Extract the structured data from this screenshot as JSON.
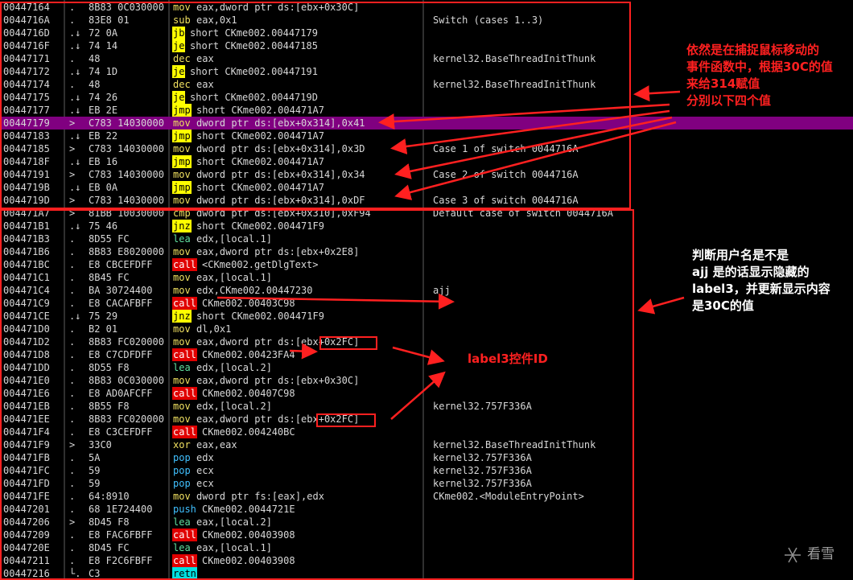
{
  "rows": [
    {
      "address": "00447164",
      "marker": ".",
      "bytes": "8B83 0C030000",
      "mnemonic": "mov",
      "operands": "eax,dword ptr ds:[ebx+0x30C]",
      "style": "plain"
    },
    {
      "address": "0044716A",
      "marker": ".",
      "bytes": "83E8 01",
      "mnemonic": "sub",
      "operands": "eax,0x1",
      "comment": "Switch (cases 1..3)",
      "style": "plain"
    },
    {
      "address": "0044716D",
      "marker": ".↓",
      "bytes": "72 0A",
      "mnemonic": "jb",
      "operands": "short CKme002.00447179",
      "style": "branch"
    },
    {
      "address": "0044716F",
      "marker": ".↓",
      "bytes": "74 14",
      "mnemonic": "je",
      "operands": "short CKme002.00447185",
      "style": "branch"
    },
    {
      "address": "00447171",
      "marker": ".",
      "bytes": "48",
      "mnemonic": "dec",
      "operands": "eax",
      "comment": "kernel32.BaseThreadInitThunk",
      "style": "plain"
    },
    {
      "address": "00447172",
      "marker": ".↓",
      "bytes": "74 1D",
      "mnemonic": "je",
      "operands": "short CKme002.00447191",
      "style": "branch"
    },
    {
      "address": "00447174",
      "marker": ".",
      "bytes": "48",
      "mnemonic": "dec",
      "operands": "eax",
      "comment": "kernel32.BaseThreadInitThunk",
      "style": "plain"
    },
    {
      "address": "00447175",
      "marker": ".↓",
      "bytes": "74 26",
      "mnemonic": "je",
      "operands": "short CKme002.0044719D",
      "style": "branch"
    },
    {
      "address": "00447177",
      "marker": ".↓",
      "bytes": "EB 2E",
      "mnemonic": "jmp",
      "operands": "short CKme002.004471A7",
      "style": "branch"
    },
    {
      "address": "00447179",
      "marker": ">",
      "bytes": "C783 14030000",
      "mnemonic": "mov",
      "operands": "dword ptr ds:[ebx+0x314],0x41",
      "style": "plain",
      "selected": true
    },
    {
      "address": "00447183",
      "marker": ".↓",
      "bytes": "EB 22",
      "mnemonic": "jmp",
      "operands": "short CKme002.004471A7",
      "style": "branch"
    },
    {
      "address": "00447185",
      "marker": ">",
      "bytes": "C783 14030000",
      "mnemonic": "mov",
      "operands": "dword ptr ds:[ebx+0x314],0x3D",
      "comment": "Case 1 of switch 0044716A",
      "style": "plain"
    },
    {
      "address": "0044718F",
      "marker": ".↓",
      "bytes": "EB 16",
      "mnemonic": "jmp",
      "operands": "short CKme002.004471A7",
      "style": "branch"
    },
    {
      "address": "00447191",
      "marker": ">",
      "bytes": "C783 14030000",
      "mnemonic": "mov",
      "operands": "dword ptr ds:[ebx+0x314],0x34",
      "comment": "Case 2 of switch 0044716A",
      "style": "plain"
    },
    {
      "address": "0044719B",
      "marker": ".↓",
      "bytes": "EB 0A",
      "mnemonic": "jmp",
      "operands": "short CKme002.004471A7",
      "style": "branch"
    },
    {
      "address": "0044719D",
      "marker": ">",
      "bytes": "C783 14030000",
      "mnemonic": "mov",
      "operands": "dword ptr ds:[ebx+0x314],0xDF",
      "comment": "Case 3 of switch 0044716A",
      "style": "plain"
    },
    {
      "address": "004471A7",
      "marker": ">",
      "bytes": "81BB 10030000",
      "mnemonic": "cmp",
      "operands": "dword ptr ds:[ebx+0x310],0xF94",
      "comment": "Default case of switch 0044716A",
      "style": "plain"
    },
    {
      "address": "004471B1",
      "marker": ".↓",
      "bytes": "75 46",
      "mnemonic": "jnz",
      "operands": "short CKme002.004471F9",
      "style": "branch"
    },
    {
      "address": "004471B3",
      "marker": ".",
      "bytes": "8D55 FC",
      "mnemonic": "lea",
      "operands": "edx,[local.1]",
      "style": "lea"
    },
    {
      "address": "004471B6",
      "marker": ".",
      "bytes": "8B83 E8020000",
      "mnemonic": "mov",
      "operands": "eax,dword ptr ds:[ebx+0x2E8]",
      "style": "plain"
    },
    {
      "address": "004471BC",
      "marker": ".",
      "bytes": "E8 CBCEFDFF",
      "mnemonic": "call",
      "operands": "<CKme002.getDlgText>",
      "style": "call"
    },
    {
      "address": "004471C1",
      "marker": ".",
      "bytes": "8B45 FC",
      "mnemonic": "mov",
      "operands": "eax,[local.1]",
      "style": "plain"
    },
    {
      "address": "004471C4",
      "marker": ".",
      "bytes": "BA 30724400",
      "mnemonic": "mov",
      "operands": "edx,CKme002.00447230",
      "comment": "ajj",
      "style": "plain"
    },
    {
      "address": "004471C9",
      "marker": ".",
      "bytes": "E8 CACAFBFF",
      "mnemonic": "call",
      "operands": "CKme002.00403C98",
      "style": "call"
    },
    {
      "address": "004471CE",
      "marker": ".↓",
      "bytes": "75 29",
      "mnemonic": "jnz",
      "operands": "short CKme002.004471F9",
      "style": "branch"
    },
    {
      "address": "004471D0",
      "marker": ".",
      "bytes": "B2 01",
      "mnemonic": "mov",
      "operands": "dl,0x1",
      "style": "plain"
    },
    {
      "address": "004471D2",
      "marker": ".",
      "bytes": "8B83 FC020000",
      "mnemonic": "mov",
      "operands": "eax,dword ptr ds:[ebx+0x2FC]",
      "style": "plain"
    },
    {
      "address": "004471D8",
      "marker": ".",
      "bytes": "E8 C7CDFDFF",
      "mnemonic": "call",
      "operands": "CKme002.00423FA4",
      "style": "call"
    },
    {
      "address": "004471DD",
      "marker": ".",
      "bytes": "8D55 F8",
      "mnemonic": "lea",
      "operands": "edx,[local.2]",
      "style": "lea"
    },
    {
      "address": "004471E0",
      "marker": ".",
      "bytes": "8B83 0C030000",
      "mnemonic": "mov",
      "operands": "eax,dword ptr ds:[ebx+0x30C]",
      "style": "plain"
    },
    {
      "address": "004471E6",
      "marker": ".",
      "bytes": "E8 AD0AFCFF",
      "mnemonic": "call",
      "operands": "CKme002.00407C98",
      "style": "call"
    },
    {
      "address": "004471EB",
      "marker": ".",
      "bytes": "8B55 F8",
      "mnemonic": "mov",
      "operands": "edx,[local.2]",
      "comment": "kernel32.757F336A",
      "style": "plain"
    },
    {
      "address": "004471EE",
      "marker": ".",
      "bytes": "8B83 FC020000",
      "mnemonic": "mov",
      "operands": "eax,dword ptr ds:[ebx+0x2FC]",
      "style": "plain"
    },
    {
      "address": "004471F4",
      "marker": ".",
      "bytes": "E8 C3CEFDFF",
      "mnemonic": "call",
      "operands": "CKme002.004240BC",
      "style": "call"
    },
    {
      "address": "004471F9",
      "marker": ">",
      "bytes": "33C0",
      "mnemonic": "xor",
      "operands": "eax,eax",
      "comment": "kernel32.BaseThreadInitThunk",
      "style": "plain"
    },
    {
      "address": "004471FB",
      "marker": ".",
      "bytes": "5A",
      "mnemonic": "pop",
      "operands": "edx",
      "comment": "kernel32.757F336A",
      "style": "stack"
    },
    {
      "address": "004471FC",
      "marker": ".",
      "bytes": "59",
      "mnemonic": "pop",
      "operands": "ecx",
      "comment": "kernel32.757F336A",
      "style": "stack"
    },
    {
      "address": "004471FD",
      "marker": ".",
      "bytes": "59",
      "mnemonic": "pop",
      "operands": "ecx",
      "comment": "kernel32.757F336A",
      "style": "stack"
    },
    {
      "address": "004471FE",
      "marker": ".",
      "bytes": "64:8910",
      "mnemonic": "mov",
      "operands": "dword ptr fs:[eax],edx",
      "comment": "CKme002.<ModuleEntryPoint>",
      "style": "plain"
    },
    {
      "address": "00447201",
      "marker": ".",
      "bytes": "68 1E724400",
      "mnemonic": "push",
      "operands": "CKme002.0044721E",
      "style": "stack"
    },
    {
      "address": "00447206",
      "marker": ">",
      "bytes": "8D45 F8",
      "mnemonic": "lea",
      "operands": "eax,[local.2]",
      "style": "lea"
    },
    {
      "address": "00447209",
      "marker": ".",
      "bytes": "E8 FAC6FBFF",
      "mnemonic": "call",
      "operands": "CKme002.00403908",
      "style": "call"
    },
    {
      "address": "0044720E",
      "marker": ".",
      "bytes": "8D45 FC",
      "mnemonic": "lea",
      "operands": "eax,[local.1]",
      "style": "lea"
    },
    {
      "address": "00447211",
      "marker": ".",
      "bytes": "E8 F2C6FBFF",
      "mnemonic": "call",
      "operands": "CKme002.00403908",
      "style": "call"
    },
    {
      "address": "00447216",
      "marker": "└.",
      "bytes": "C3",
      "mnemonic": "retn",
      "style": "ret"
    }
  ],
  "annotations": {
    "switch_note": [
      "依然是在捕捉鼠标移动的",
      "事件函数中，根据30C的值",
      "来给314赋值",
      "分别以下四个值"
    ],
    "user_note": [
      "判断用户名是不是",
      "ajj 是的话显示隐藏的",
      "label3，并更新显示内容",
      "是30C的值"
    ],
    "label_note": "label3控件ID"
  },
  "watermark": "看雪"
}
